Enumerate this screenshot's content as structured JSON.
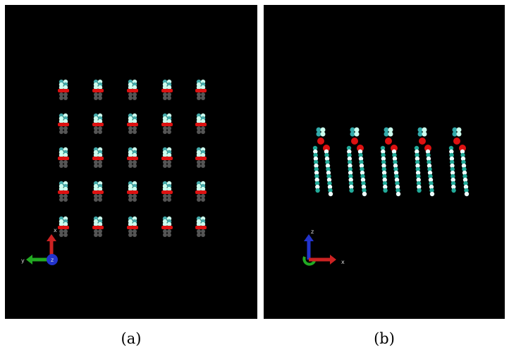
{
  "panels": [
    {
      "caption": "(a)",
      "axis_labels": [
        "x",
        "y",
        "z"
      ]
    },
    {
      "caption": "(b)",
      "axis_labels": [
        "z",
        "x"
      ]
    }
  ]
}
